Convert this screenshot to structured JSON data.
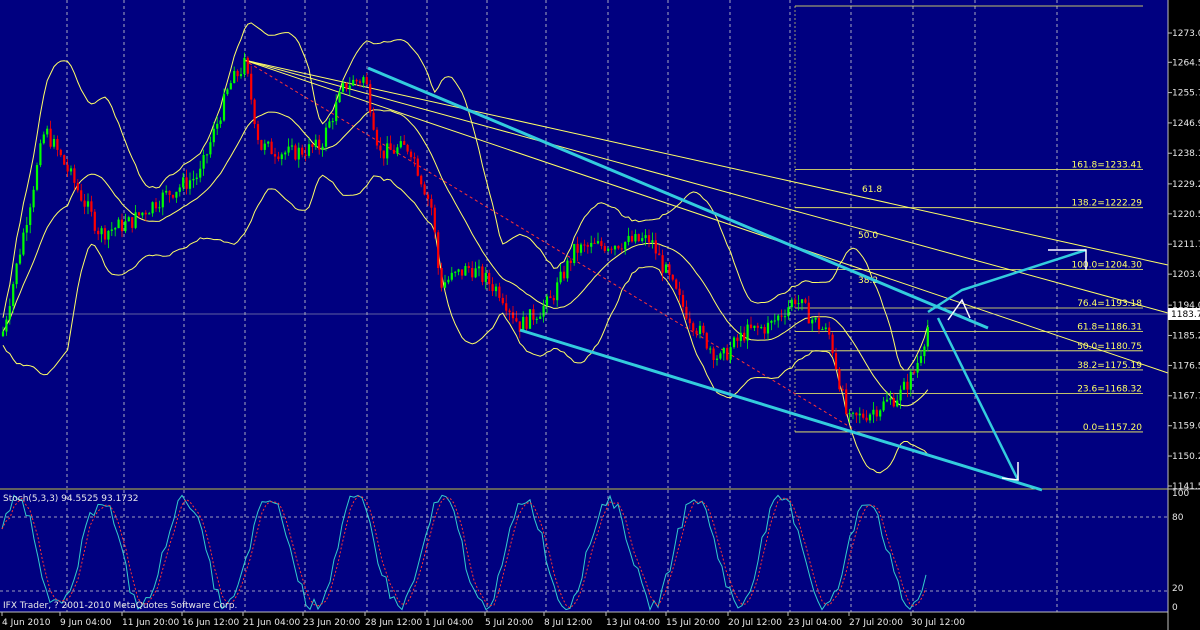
{
  "chart_data": {
    "type": "candlestick",
    "main": {
      "y_ticks": [
        "1273.0",
        "1264.5",
        "1255.7",
        "1246.9",
        "1238.1",
        "1229.2",
        "1220.5",
        "1211.7",
        "1203.0",
        "1194.0",
        "1185.2",
        "1176.5",
        "1167.7",
        "1159.0",
        "1150.2",
        "1141.5"
      ],
      "current_price": "1183.7",
      "fib_retracement": [
        {
          "label": "161.8=1233.41",
          "value": 1233.41
        },
        {
          "label": "138.2=1222.29",
          "value": 1222.29
        },
        {
          "label": "100.0=1204.30",
          "value": 1204.3
        },
        {
          "label": "76.4=1193.18",
          "value": 1193.18
        },
        {
          "label": "61.8=1186.31",
          "value": 1186.31
        },
        {
          "label": "50.0=1180.75",
          "value": 1180.75
        },
        {
          "label": "38.2=1175.19",
          "value": 1175.19
        },
        {
          "label": "23.6=1168.32",
          "value": 1168.32
        },
        {
          "label": "0.0=1157.20",
          "value": 1157.2
        }
      ],
      "fan_labels": [
        "61.8",
        "50.0",
        "38.2"
      ]
    },
    "indicator": {
      "label": "Stoch(5,3,3) 94.5525 93.1732",
      "y_ticks": [
        "100",
        "80",
        "20",
        "0"
      ]
    },
    "x_ticks": [
      "4 Jun 2010",
      "9 Jun 04:00",
      "11 Jun 20:00",
      "16 Jun 12:00",
      "21 Jun 04:00",
      "23 Jun 20:00",
      "28 Jun 12:00",
      "1 Jul 04:00",
      "5 Jul 20:00",
      "8 Jul 12:00",
      "13 Jul 04:00",
      "15 Jul 20:00",
      "20 Jul 12:00",
      "23 Jul 04:00",
      "27 Jul 20:00",
      "30 Jul 12:00"
    ]
  },
  "footer": {
    "copyright": "IFX Trader, ? 2001-2010 MetaQuotes Software Corp."
  },
  "colors": {
    "background": "#000080",
    "bull": "#00ff00",
    "bear": "#ff0000",
    "bands": "#ffff66",
    "channel": "#33ccdd"
  }
}
